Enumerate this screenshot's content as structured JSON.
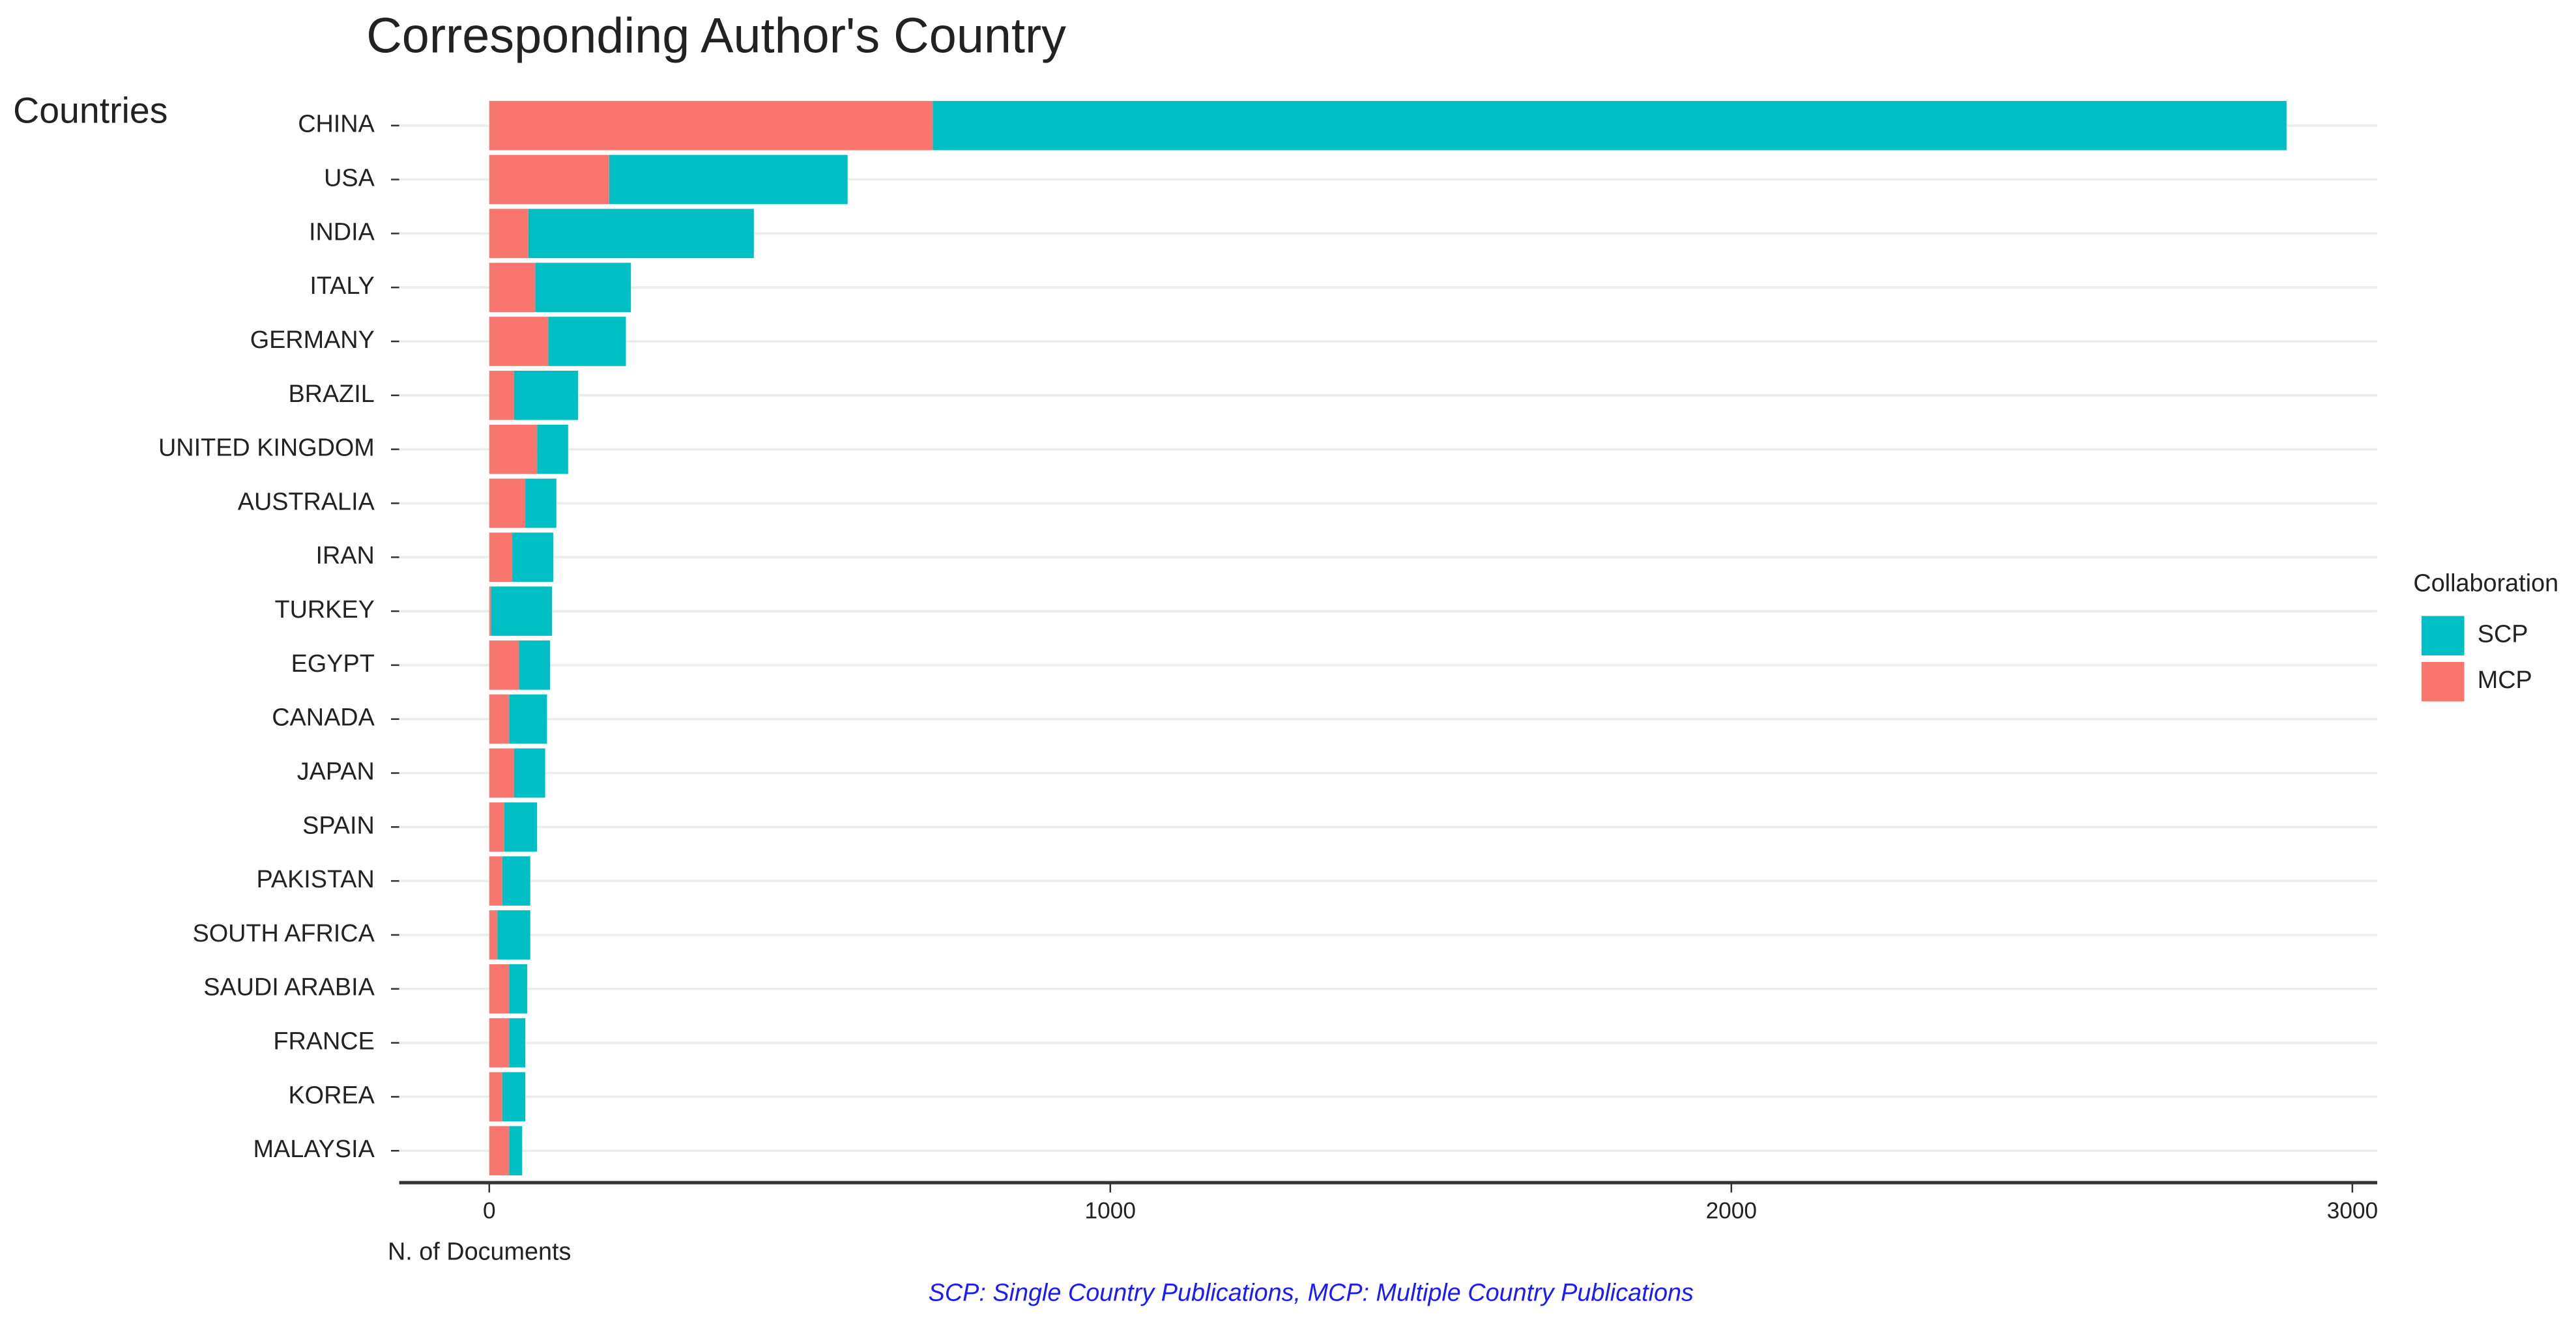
{
  "chart_data": {
    "type": "stacked-bar-horizontal",
    "title": "Corresponding Author's Country",
    "y_label": "Countries",
    "x_label": "N. of Documents",
    "caption": "SCP: Single Country Publications, MCP: Multiple Country Publications",
    "legend_title": "Collaboration",
    "categories": [
      "CHINA",
      "USA",
      "INDIA",
      "ITALY",
      "GERMANY",
      "BRAZIL",
      "UNITED KINGDOM",
      "AUSTRALIA",
      "IRAN",
      "TURKEY",
      "EGYPT",
      "CANADA",
      "JAPAN",
      "SPAIN",
      "PAKISTAN",
      "SOUTH AFRICA",
      "SAUDI ARABIA",
      "FRANCE",
      "KOREA",
      "MALAYSIA"
    ],
    "series": [
      {
        "name": "MCP",
        "color": "#f8766d",
        "values": [
          714,
          193,
          63,
          74,
          95,
          40,
          77,
          58,
          37,
          3,
          48,
          32,
          40,
          24,
          21,
          13,
          32,
          32,
          21,
          32
        ]
      },
      {
        "name": "SCP",
        "color": "#00bfc4",
        "values": [
          2180,
          384,
          363,
          154,
          125,
          103,
          50,
          50,
          66,
          98,
          50,
          61,
          50,
          53,
          45,
          53,
          29,
          26,
          37,
          21
        ]
      }
    ],
    "xlim": [
      -145,
      3040
    ],
    "xticks": [
      0,
      1000,
      2000,
      3000
    ],
    "grid": true
  }
}
